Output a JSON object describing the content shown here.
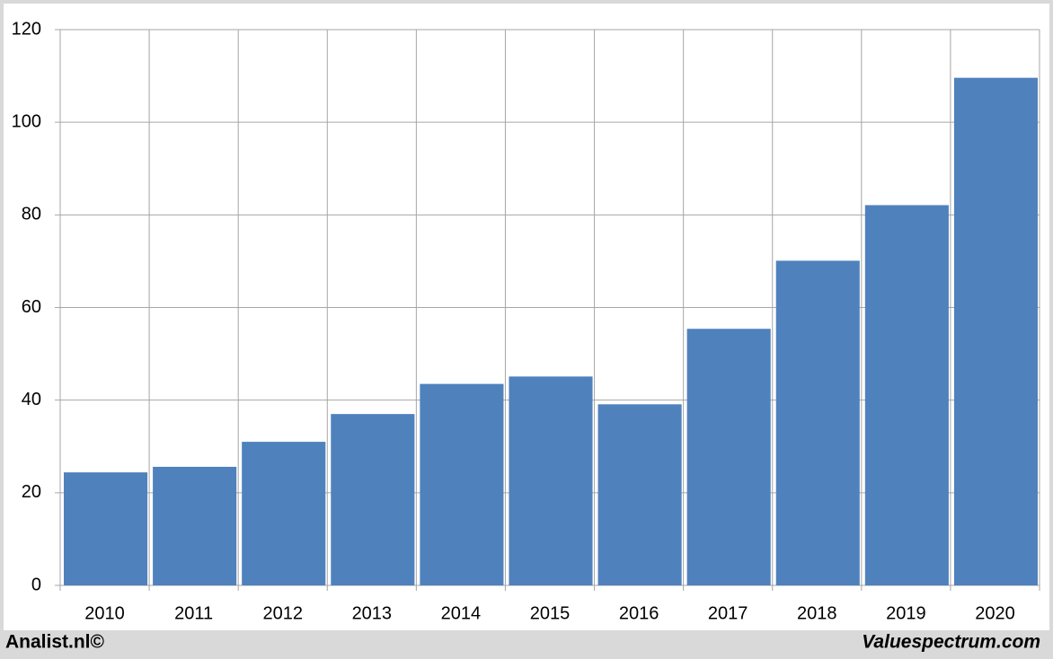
{
  "chart_data": {
    "type": "bar",
    "categories": [
      "2010",
      "2011",
      "2012",
      "2013",
      "2014",
      "2015",
      "2016",
      "2017",
      "2018",
      "2019",
      "2020"
    ],
    "values": [
      24.4,
      25.6,
      31,
      37,
      43.5,
      45.1,
      39.1,
      55.4,
      70.1,
      82.1,
      109.6
    ],
    "color": "#4f81bd",
    "ylim": [
      0,
      120
    ],
    "yticks": [
      0,
      20,
      40,
      60,
      80,
      100,
      120
    ],
    "grid": true,
    "annotations": [
      "Analist.nl©",
      "Valuespectrum.com"
    ]
  }
}
